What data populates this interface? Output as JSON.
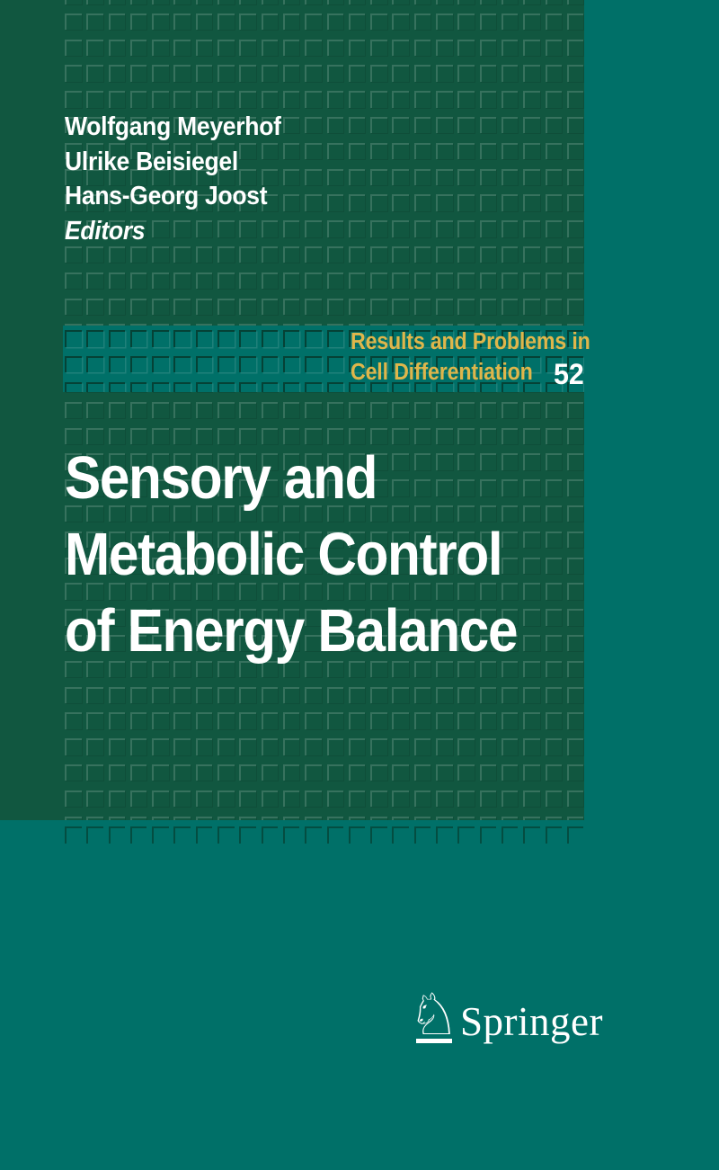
{
  "cover": {
    "editors": [
      "Wolfgang Meyerhof",
      "Ulrike Beisiegel",
      "Hans-Georg Joost"
    ],
    "editors_label": "Editors",
    "series": {
      "line1": "Results and Problems in",
      "line2": "Cell Differentiation",
      "volume": "52"
    },
    "title_lines": [
      "Sensory and",
      "Metabolic Control",
      "of Energy Balance"
    ],
    "publisher": {
      "name": "Springer",
      "knight_glyph": "♘"
    },
    "colors": {
      "dark_green": "#115740",
      "teal": "#007068",
      "gold": "#dfb64b",
      "text_white": "#ffffff"
    }
  }
}
